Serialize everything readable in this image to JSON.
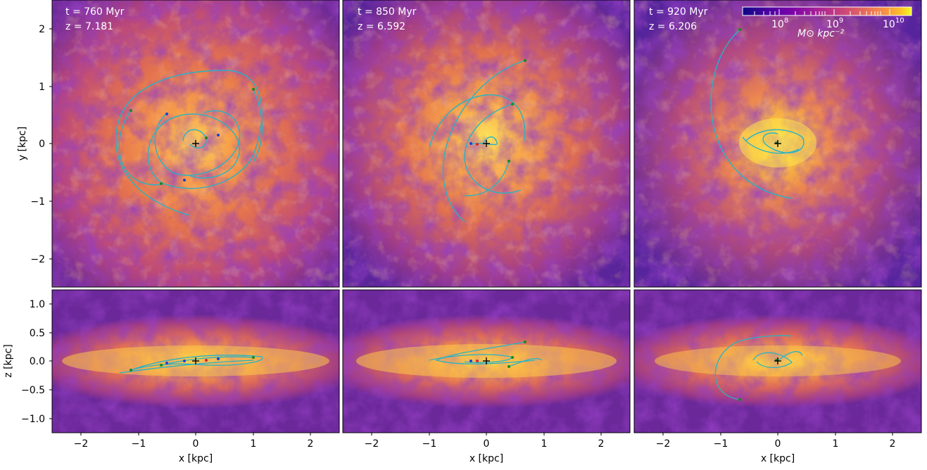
{
  "panels": [
    {
      "time_label": "t = 760 Myr",
      "redshift_label": "z = 7.181"
    },
    {
      "time_label": "t = 850 Myr",
      "redshift_label": "z = 6.592"
    },
    {
      "time_label": "t = 920 Myr",
      "redshift_label": "z = 6.206"
    }
  ],
  "axes": {
    "ylabel_top": "y [kpc]",
    "ylabel_bottom": "z [kpc]",
    "xlabel": "x [kpc]",
    "x_ticks": [
      "−2",
      "−1",
      "0",
      "1",
      "2"
    ],
    "y_ticks_top": [
      "2",
      "1",
      "0",
      "−1",
      "−2"
    ],
    "y_ticks_bottom": [
      "1.0",
      "0.5",
      "0.0",
      "−0.5",
      "−1.0"
    ],
    "x_range": [
      -2.5,
      2.5
    ],
    "y_range_top": [
      -2.5,
      2.5
    ],
    "z_range_bottom": [
      -1.25,
      1.25
    ]
  },
  "colorbar": {
    "ticks": [
      "10^8",
      "10^9",
      "10^10"
    ],
    "tick8": "10",
    "exp8": "8",
    "tick9": "10",
    "exp9": "9",
    "tick10": "10",
    "exp10": "10",
    "unit_label": "M⊙  kpc⁻²",
    "range_log10": [
      7.3,
      10.5
    ],
    "colormap": "plasma"
  },
  "colors": {
    "orbit": "#27b3c6",
    "dot_green": "#1a8a1a",
    "dot_blue": "#1f3fd1",
    "dot_red": "#d6262c",
    "center_marker": "#000000"
  }
}
